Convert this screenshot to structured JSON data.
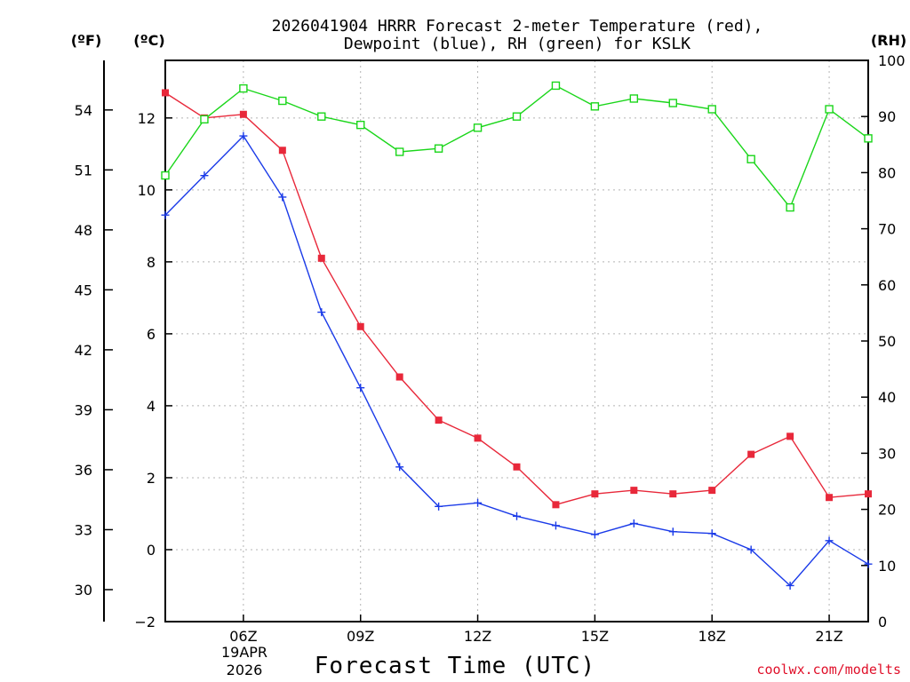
{
  "chart_data": {
    "type": "line",
    "title_line1": "2026041904 HRRR Forecast 2-meter Temperature (red),",
    "title_line2": "Dewpoint (blue), RH (green) for KSLK",
    "xlabel": "Forecast Time (UTC)",
    "unit_labels": {
      "fahrenheit": "(ºF)",
      "celsius": "(ºC)",
      "rh": "(RH)"
    },
    "date_label": [
      "19APR",
      "2026"
    ],
    "credit": "coolwx.com/modelts",
    "x_hours": [
      4,
      5,
      6,
      7,
      8,
      9,
      10,
      11,
      12,
      13,
      14,
      15,
      16,
      17,
      18,
      19,
      20,
      21,
      22
    ],
    "xlim": [
      4,
      22
    ],
    "x_ticks": [
      {
        "hour": 6,
        "label": "06Z"
      },
      {
        "hour": 9,
        "label": "09Z"
      },
      {
        "hour": 12,
        "label": "12Z"
      },
      {
        "hour": 15,
        "label": "15Z"
      },
      {
        "hour": 18,
        "label": "18Z"
      },
      {
        "hour": 21,
        "label": "21Z"
      }
    ],
    "ylim_c": [
      -2,
      13.6
    ],
    "y_ticks_c": [
      -2,
      0,
      2,
      4,
      6,
      8,
      10,
      12
    ],
    "y_ticks_f": [
      30,
      33,
      36,
      39,
      42,
      45,
      48,
      51,
      54
    ],
    "ylim_rh": [
      0,
      100
    ],
    "y_ticks_rh": [
      0,
      10,
      20,
      30,
      40,
      50,
      60,
      70,
      80,
      90,
      100
    ],
    "series": [
      {
        "name": "Temperature",
        "axis": "c",
        "color": "#e8283a",
        "marker": "filled-square",
        "values": [
          12.7,
          12.0,
          12.1,
          11.1,
          8.1,
          6.2,
          4.8,
          3.6,
          3.1,
          2.3,
          1.25,
          1.55,
          1.65,
          1.55,
          1.65,
          2.65,
          3.15,
          1.45,
          1.55
        ]
      },
      {
        "name": "Dewpoint",
        "axis": "c",
        "color": "#1a3ae8",
        "marker": "plus",
        "values": [
          9.3,
          10.4,
          11.5,
          9.8,
          6.6,
          4.5,
          2.3,
          1.2,
          1.3,
          0.93,
          0.67,
          0.42,
          0.73,
          0.5,
          0.45,
          0.0,
          -1.0,
          0.25,
          -0.4
        ]
      },
      {
        "name": "RH",
        "axis": "rh",
        "color": "#1ad61a",
        "marker": "open-square",
        "values": [
          79.5,
          89.5,
          95,
          92.8,
          90,
          88.5,
          83.7,
          84.3,
          88,
          90,
          95.5,
          91.8,
          93.2,
          92.4,
          91.3,
          82.4,
          73.8,
          91.3,
          86.1
        ]
      }
    ]
  }
}
